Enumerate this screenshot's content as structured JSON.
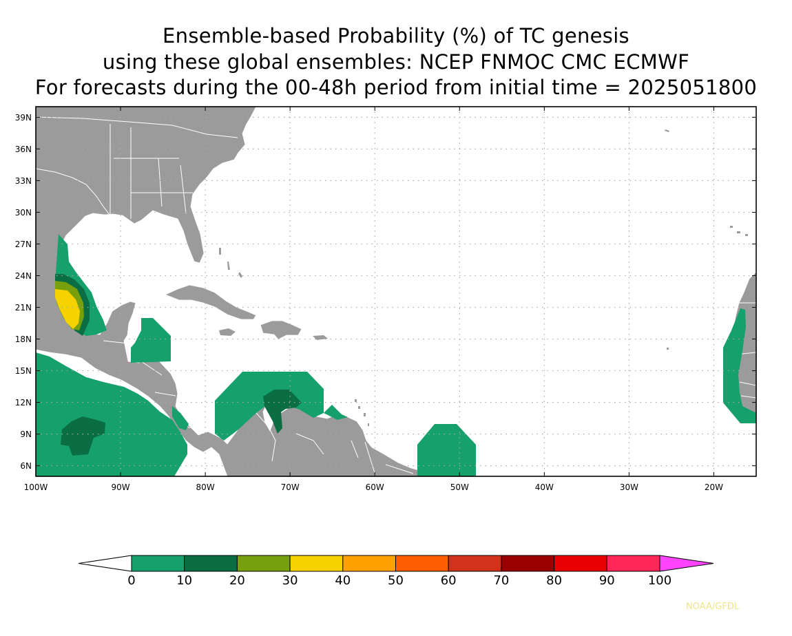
{
  "title": {
    "line1": "Ensemble-based Probability (%) of TC genesis",
    "line2": "using these global ensembles:   NCEP FNMOC CMC ECMWF",
    "line3": "For forecasts during the 00-48h period from initial time = 2025051800"
  },
  "map": {
    "lon_range": [
      -100,
      -15
    ],
    "lat_range": [
      5,
      40
    ],
    "lat_ticks": [
      "39N",
      "36N",
      "33N",
      "30N",
      "27N",
      "24N",
      "21N",
      "18N",
      "15N",
      "12N",
      "9N",
      "6N"
    ],
    "lon_ticks": [
      "100W",
      "90W",
      "80W",
      "70W",
      "60W",
      "50W",
      "40W",
      "30W",
      "20W"
    ],
    "land_color": "#9b9b9b",
    "border_color": "#ffffff",
    "ocean_color": "#ffffff",
    "gridline_style": "dotted"
  },
  "colorbar": {
    "labels": [
      "0",
      "10",
      "20",
      "30",
      "40",
      "50",
      "60",
      "70",
      "80",
      "90",
      "100"
    ],
    "colors": [
      "#16a06c",
      "#0b6e42",
      "#78a00c",
      "#f5d200",
      "#ffa200",
      "#ff5e00",
      "#d2321a",
      "#9a0000",
      "#e80000",
      "#ff2658"
    ],
    "lower_extend_color": "#ffffff",
    "upper_extend_color": "#ff44ff"
  },
  "credit": "NOAA/GFDL"
}
